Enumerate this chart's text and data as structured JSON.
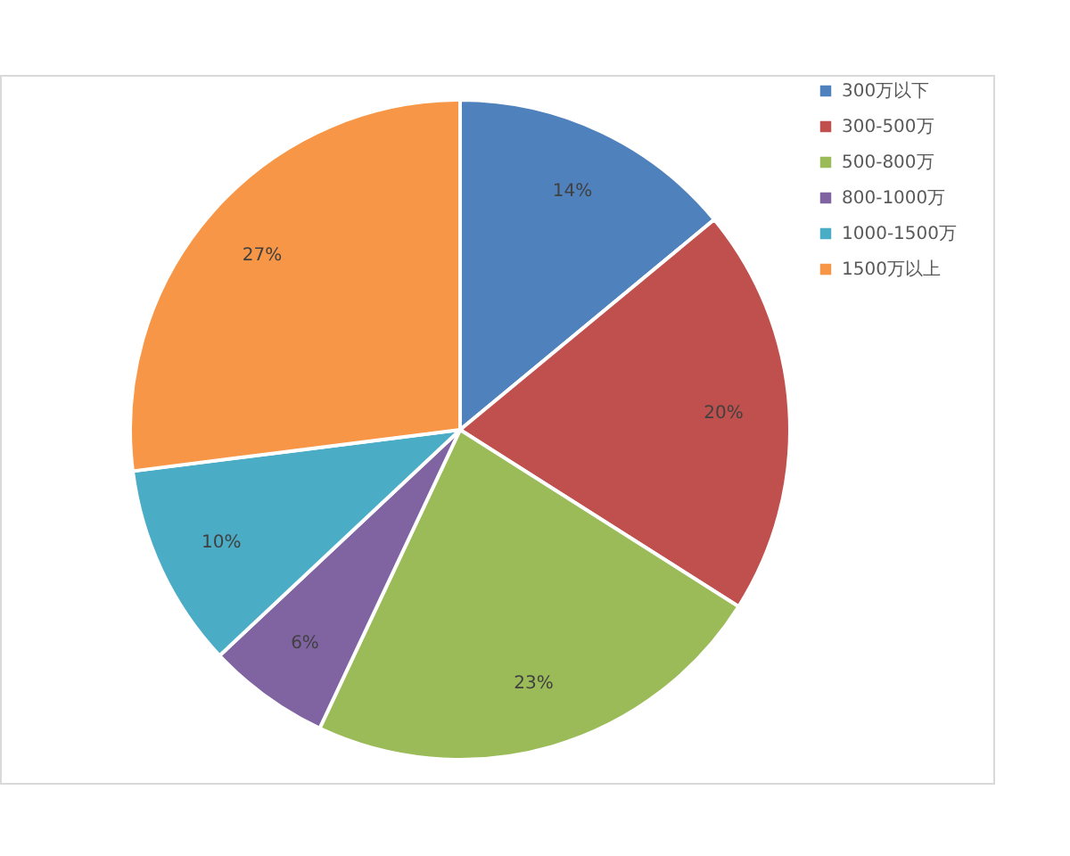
{
  "chart_data": {
    "type": "pie",
    "categories": [
      "300万以下",
      "300-500万",
      "500-800万",
      "800-1000万",
      "1000-1500万",
      "1500万以上"
    ],
    "values": [
      14,
      20,
      23,
      6,
      10,
      27
    ],
    "colors": [
      "#4f81bd",
      "#c0504d",
      "#9bbb59",
      "#8064a2",
      "#4bacc6",
      "#f79646"
    ],
    "value_labels": [
      "14%",
      "20%",
      "23%",
      "6%",
      "10%",
      "27%"
    ],
    "legend": "right"
  }
}
